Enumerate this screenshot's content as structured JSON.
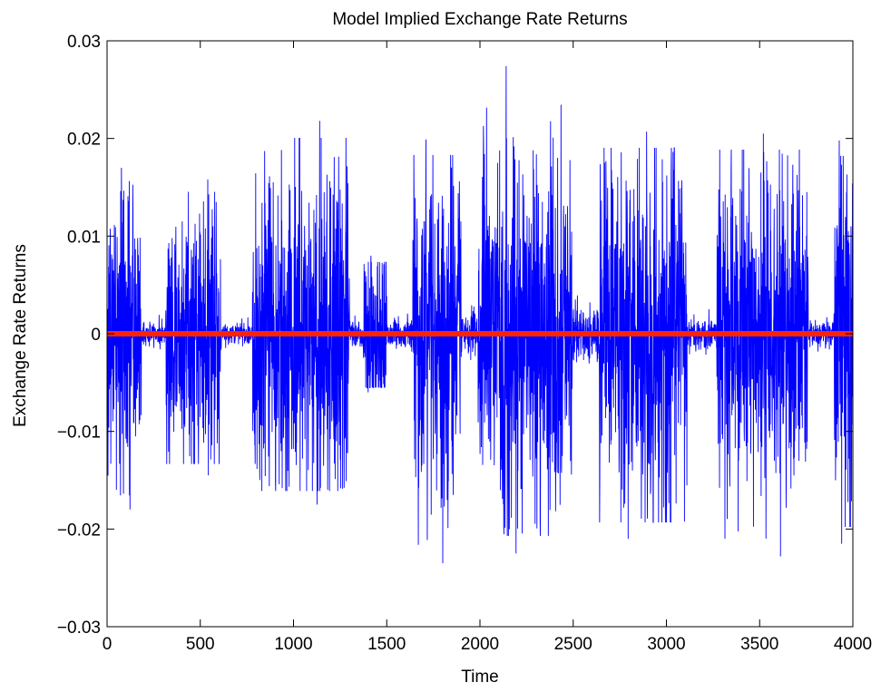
{
  "chart_data": {
    "type": "line",
    "title": "Model Implied Exchange Rate Returns",
    "xlabel": "Time",
    "ylabel": "Exchange Rate Returns",
    "xlim": [
      0,
      4000
    ],
    "ylim": [
      -0.03,
      0.03
    ],
    "xticks": [
      0,
      500,
      1000,
      1500,
      2000,
      2500,
      3000,
      3500,
      4000
    ],
    "xtick_labels": [
      "0",
      "500",
      "1000",
      "1500",
      "2000",
      "2500",
      "3000",
      "3500",
      "4000"
    ],
    "yticks": [
      -0.03,
      -0.02,
      -0.01,
      0,
      0.01,
      0.02,
      0.03
    ],
    "ytick_labels": [
      "−0.03",
      "−0.02",
      "−0.01",
      "0",
      "0.01",
      "0.02",
      "0.03"
    ],
    "grid": false,
    "legend": "none",
    "series": [
      {
        "color": "#0000ff",
        "style": "thin-line",
        "n_points": 4000,
        "volatility_regimes": [
          {
            "start": 0,
            "end": 185,
            "amplitude": 0.0075,
            "max": 0.017,
            "min": -0.018
          },
          {
            "start": 185,
            "end": 315,
            "amplitude": 0.0006
          },
          {
            "start": 315,
            "end": 610,
            "amplitude": 0.0065,
            "max": 0.0158,
            "min": -0.0145
          },
          {
            "start": 610,
            "end": 780,
            "amplitude": 0.0006
          },
          {
            "start": 780,
            "end": 1300,
            "amplitude": 0.0085,
            "max": 0.0218,
            "min": -0.0175
          },
          {
            "start": 1300,
            "end": 1375,
            "amplitude": 0.0008
          },
          {
            "start": 1375,
            "end": 1500,
            "amplitude": 0.0045,
            "max": 0.008,
            "min": -0.006
          },
          {
            "start": 1500,
            "end": 1640,
            "amplitude": 0.0008
          },
          {
            "start": 1640,
            "end": 1900,
            "amplitude": 0.009,
            "max": 0.0199,
            "min": -0.0235
          },
          {
            "start": 1900,
            "end": 1990,
            "amplitude": 0.001
          },
          {
            "start": 1990,
            "end": 2495,
            "amplitude": 0.009,
            "max": 0.0274,
            "min": -0.0225
          },
          {
            "start": 2495,
            "end": 2640,
            "amplitude": 0.0015
          },
          {
            "start": 2640,
            "end": 3110,
            "amplitude": 0.009,
            "max": 0.0207,
            "min": -0.021
          },
          {
            "start": 3110,
            "end": 3270,
            "amplitude": 0.0008
          },
          {
            "start": 3270,
            "end": 3760,
            "amplitude": 0.009,
            "max": 0.0205,
            "min": -0.0228
          },
          {
            "start": 3760,
            "end": 3900,
            "amplitude": 0.0008
          },
          {
            "start": 3900,
            "end": 4000,
            "amplitude": 0.009,
            "max": 0.0198,
            "min": -0.0215
          }
        ]
      },
      {
        "color": "#ff2200",
        "style": "thick-line",
        "x": [
          0,
          4000
        ],
        "y": [
          0,
          0
        ]
      }
    ]
  }
}
